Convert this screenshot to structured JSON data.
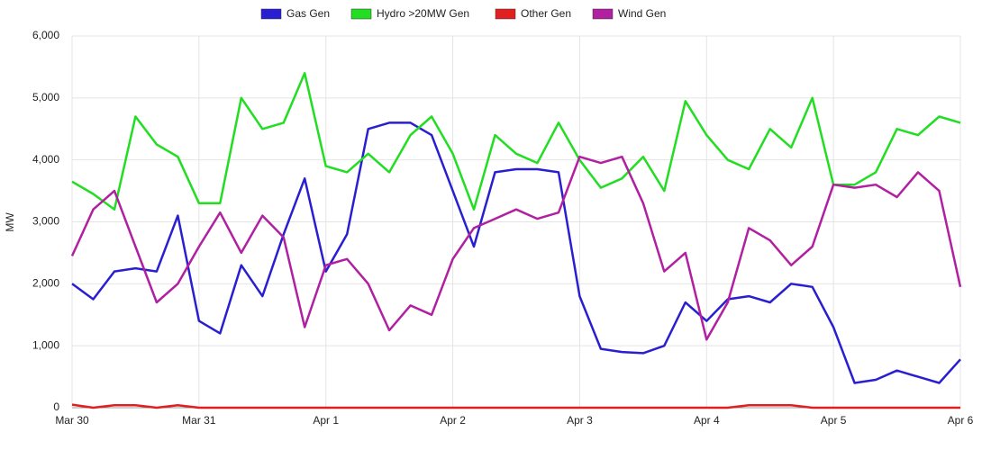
{
  "chart_data": {
    "type": "line",
    "y_label": "MW",
    "categories": [
      "Mar 30",
      null,
      null,
      null,
      null,
      null,
      "Mar 31",
      null,
      null,
      null,
      null,
      null,
      "Apr 1",
      null,
      null,
      null,
      null,
      null,
      "Apr 2",
      null,
      null,
      null,
      null,
      null,
      "Apr 3",
      null,
      null,
      null,
      null,
      null,
      "Apr 4",
      null,
      null,
      null,
      null,
      null,
      "Apr 5",
      null,
      null,
      null,
      null,
      null,
      "Apr 6"
    ],
    "series": [
      {
        "name": "Gas Gen",
        "color": "#2a1fd0",
        "values": [
          2000,
          1750,
          2200,
          2250,
          2200,
          3100,
          1400,
          1200,
          2300,
          1800,
          2800,
          3700,
          2200,
          2800,
          4500,
          4600,
          4600,
          4400,
          3500,
          2600,
          3800,
          3850,
          3850,
          3800,
          1800,
          950,
          900,
          880,
          1000,
          1700,
          1400,
          1750,
          1800,
          1700,
          2000,
          1950,
          1300,
          400,
          450,
          600,
          500,
          400,
          780
        ]
      },
      {
        "name": "Hydro >20MW Gen",
        "color": "#22dd22",
        "values": [
          3650,
          3450,
          3200,
          4700,
          4250,
          4050,
          3300,
          3300,
          5000,
          4500,
          4600,
          5400,
          3900,
          3800,
          4100,
          3800,
          4400,
          4700,
          4100,
          3200,
          4400,
          4100,
          3950,
          4600,
          4000,
          3550,
          3700,
          4050,
          3500,
          4950,
          4400,
          4000,
          3850,
          4500,
          4200,
          5000,
          3600,
          3600,
          3800,
          4500,
          4400,
          4700,
          4600
        ]
      },
      {
        "name": "Other Gen",
        "color": "#e02020",
        "values": [
          50,
          0,
          40,
          40,
          0,
          40,
          0,
          0,
          0,
          0,
          0,
          0,
          0,
          0,
          0,
          0,
          0,
          0,
          0,
          0,
          0,
          0,
          0,
          0,
          0,
          0,
          0,
          0,
          0,
          0,
          0,
          0,
          40,
          40,
          40,
          0,
          0,
          0,
          0,
          0,
          0,
          0,
          0
        ]
      },
      {
        "name": "Wind Gen",
        "color": "#b020a0",
        "values": [
          2450,
          3200,
          3500,
          2600,
          1700,
          2000,
          2600,
          3150,
          2500,
          3100,
          2750,
          1300,
          2300,
          2400,
          2000,
          1250,
          1650,
          1500,
          2400,
          2900,
          3050,
          3200,
          3050,
          3150,
          4050,
          3950,
          4050,
          3300,
          2200,
          2500,
          1100,
          1700,
          2900,
          2700,
          2300,
          2600,
          3600,
          3550,
          3600,
          3400,
          3800,
          3500,
          1950
        ]
      }
    ],
    "ylim": [
      0,
      6000
    ],
    "yticks": [
      0,
      {
        "value": 1000,
        "label": "1,000"
      },
      {
        "value": 2000,
        "label": "2,000"
      },
      {
        "value": 3000,
        "label": "3,000"
      },
      {
        "value": 4000,
        "label": "4,000"
      },
      {
        "value": 5000,
        "label": "5,000"
      },
      {
        "value": 6000,
        "label": "6,000"
      }
    ],
    "grid": true,
    "legend": "top"
  }
}
